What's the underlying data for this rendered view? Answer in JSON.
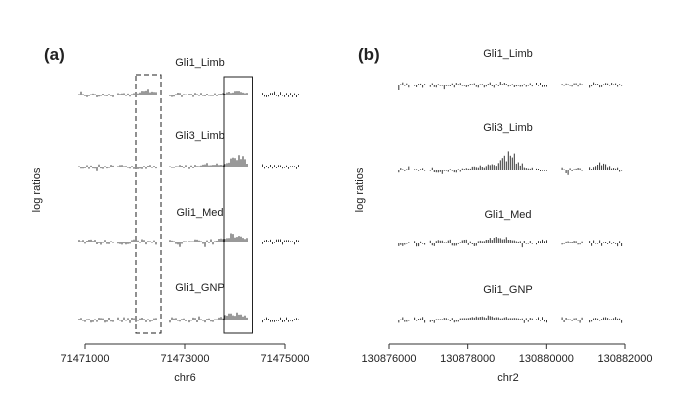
{
  "chart_data": [
    {
      "type": "bar",
      "panel_label": "(a)",
      "ylabel": "log ratios",
      "xlabel": "chr6",
      "xlim": [
        71470700,
        71475400
      ],
      "xticks": [
        71471000,
        71473000,
        71475000
      ],
      "xtick_labels": [
        "71471000",
        "71473000",
        "71475000"
      ],
      "baseline_mode": "center",
      "highlights": [
        {
          "style": "dashed",
          "x": [
            71472020,
            71472520
          ]
        },
        {
          "style": "solid",
          "x": [
            71473780,
            71474350
          ]
        }
      ],
      "segments": [
        [
          71470880,
          71471560
        ],
        [
          71471660,
          71472450
        ],
        [
          71472700,
          71473020
        ],
        [
          71473080,
          71474250
        ],
        [
          71474550,
          71475280
        ]
      ],
      "series": [
        {
          "name": "Gli1_Limb",
          "amp": 2.0,
          "peaks": [
            {
              "x": 71472280,
              "w": 200,
              "h": 5.0
            },
            {
              "x": 71474000,
              "w": 250,
              "h": 3.8
            }
          ]
        },
        {
          "name": "Gli3_Limb",
          "amp": 2.0,
          "peaks": [
            {
              "x": 71474050,
              "w": 200,
              "h": 14.0
            },
            {
              "x": 71473550,
              "w": 250,
              "h": 2.4
            }
          ]
        },
        {
          "name": "Gli1_Med",
          "amp": 2.6,
          "peaks": [
            {
              "x": 71474000,
              "w": 250,
              "h": 8.0
            }
          ]
        },
        {
          "name": "Gli1_GNP",
          "amp": 2.4,
          "peaks": [
            {
              "x": 71474000,
              "w": 250,
              "h": 7.5
            }
          ]
        }
      ]
    },
    {
      "type": "bar",
      "panel_label": "(b)",
      "ylabel": "log ratios",
      "xlabel": "chr2",
      "xlim": [
        130876000,
        130882000
      ],
      "xticks": [
        130876000,
        130878000,
        130880000,
        130882000
      ],
      "xtick_labels": [
        "130876000",
        "130878000",
        "130880000",
        "130882000"
      ],
      "baseline_mode": "center",
      "highlights": [],
      "segments": [
        [
          130876250,
          130876550
        ],
        [
          130876650,
          130876950
        ],
        [
          130877050,
          130879650
        ],
        [
          130879750,
          130880050
        ],
        [
          130880400,
          130880950
        ],
        [
          130881100,
          130881950
        ]
      ],
      "series": [
        {
          "name": "Gli1_Limb",
          "amp": 2.4,
          "peaks": []
        },
        {
          "name": "Gli3_Limb",
          "amp": 2.4,
          "peaks": [
            {
              "x": 130879050,
              "w": 300,
              "h": 19.0
            },
            {
              "x": 130878400,
              "w": 400,
              "h": 4.0
            },
            {
              "x": 130881400,
              "w": 250,
              "h": 6.5
            }
          ]
        },
        {
          "name": "Gli1_Med",
          "amp": 3.2,
          "peaks": [
            {
              "x": 130878800,
              "w": 350,
              "h": 6.0
            }
          ]
        },
        {
          "name": "Gli1_GNP",
          "amp": 2.8,
          "peaks": [
            {
              "x": 130878600,
              "w": 600,
              "h": 3.0
            }
          ]
        }
      ]
    }
  ]
}
